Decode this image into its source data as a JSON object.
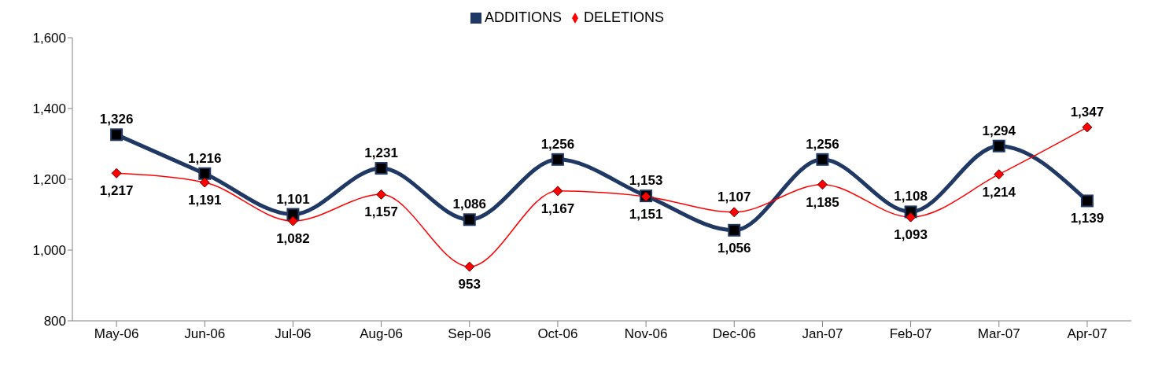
{
  "chart_data": {
    "type": "line",
    "categories": [
      "May-06",
      "Jun-06",
      "Jul-06",
      "Aug-06",
      "Sep-06",
      "Oct-06",
      "Nov-06",
      "Dec-06",
      "Jan-07",
      "Feb-07",
      "Mar-07",
      "Apr-07"
    ],
    "series": [
      {
        "name": "ADDITIONS",
        "color": "#1f3864",
        "marker": "square",
        "values": [
          1326,
          1216,
          1101,
          1231,
          1086,
          1256,
          1153,
          1056,
          1256,
          1108,
          1294,
          1139
        ],
        "value_labels": [
          "1,326",
          "1,216",
          "1,101",
          "1,231",
          "1,086",
          "1,256",
          "1,153",
          "1,056",
          "1,256",
          "1,108",
          "1,294",
          "1,139"
        ]
      },
      {
        "name": "DELETIONS",
        "color": "#ff0000",
        "marker": "diamond",
        "values": [
          1217,
          1191,
          1082,
          1157,
          953,
          1167,
          1151,
          1107,
          1185,
          1093,
          1214,
          1347
        ],
        "value_labels": [
          "1,217",
          "1,191",
          "1,082",
          "1,157",
          "953",
          "1,167",
          "1,151",
          "1,107",
          "1,185",
          "1,093",
          "1,214",
          "1,347"
        ]
      }
    ],
    "ylim": [
      800,
      1600
    ],
    "yticks": [
      800,
      {
        "value": 1000,
        "label": "1,000"
      },
      {
        "value": 1200,
        "label": "1,200"
      },
      {
        "value": 1400,
        "label": "1,400"
      },
      {
        "value": 1600,
        "label": "1,600"
      }
    ],
    "grid": false,
    "legend": "top"
  }
}
